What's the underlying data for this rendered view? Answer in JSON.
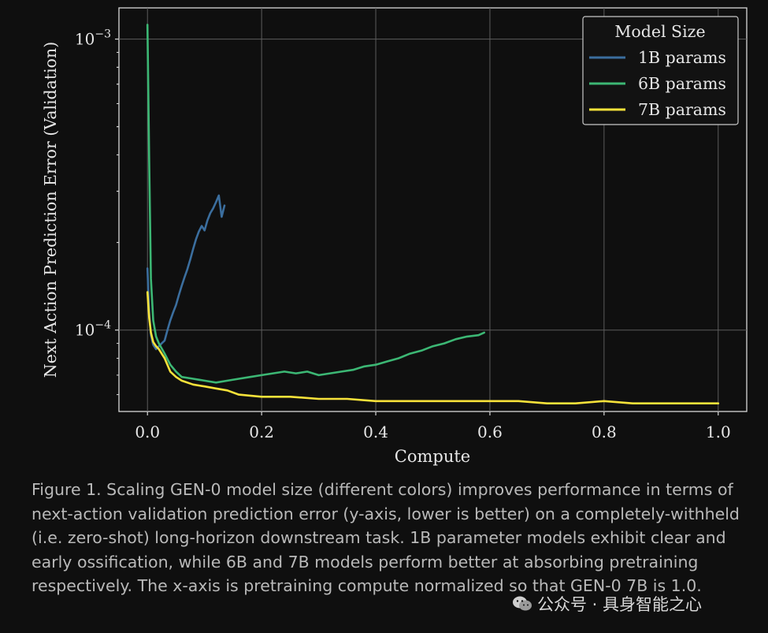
{
  "chart_data": {
    "type": "line",
    "xlabel": "Compute",
    "ylabel": "Next Action Prediction Error (Validation)",
    "xlim": [
      -0.05,
      1.05
    ],
    "ylim": [
      5.25e-05,
      0.00128
    ],
    "yscale": "log",
    "grid": true,
    "xticks": [
      {
        "value": 0.0,
        "label": "0.0"
      },
      {
        "value": 0.2,
        "label": "0.2"
      },
      {
        "value": 0.4,
        "label": "0.4"
      },
      {
        "value": 0.6,
        "label": "0.6"
      },
      {
        "value": 0.8,
        "label": "0.8"
      },
      {
        "value": 1.0,
        "label": "1.0"
      }
    ],
    "yticks": [
      {
        "value": 0.001,
        "base": "10",
        "exp": "−3"
      },
      {
        "value": 0.0001,
        "base": "10",
        "exp": "−4"
      }
    ],
    "legend": {
      "title": "Model Size",
      "placement": "top-right"
    },
    "series": [
      {
        "name": "1B params",
        "color": "#3b6e9e",
        "x": [
          0.0,
          0.003,
          0.006,
          0.01,
          0.015,
          0.02,
          0.025,
          0.03,
          0.035,
          0.04,
          0.045,
          0.05,
          0.055,
          0.06,
          0.065,
          0.07,
          0.075,
          0.08,
          0.085,
          0.09,
          0.095,
          0.1,
          0.105,
          0.11,
          0.115,
          0.12,
          0.125,
          0.13,
          0.135
        ],
        "y": [
          0.000163,
          0.000115,
          9.6e-05,
          8.9e-05,
          8.6e-05,
          8.8e-05,
          9e-05,
          9.2e-05,
          0.0001,
          0.000108,
          0.000115,
          0.000122,
          0.000132,
          0.000142,
          0.000152,
          0.000162,
          0.000175,
          0.00019,
          0.000205,
          0.000218,
          0.000228,
          0.00022,
          0.000238,
          0.000252,
          0.000262,
          0.000275,
          0.00029,
          0.000245,
          0.000268
        ]
      },
      {
        "name": "6B params",
        "color": "#3cb774",
        "x": [
          0.0,
          0.003,
          0.006,
          0.01,
          0.015,
          0.02,
          0.03,
          0.04,
          0.05,
          0.06,
          0.08,
          0.1,
          0.12,
          0.14,
          0.16,
          0.18,
          0.2,
          0.22,
          0.24,
          0.26,
          0.28,
          0.3,
          0.32,
          0.34,
          0.36,
          0.38,
          0.4,
          0.42,
          0.44,
          0.46,
          0.48,
          0.5,
          0.52,
          0.54,
          0.56,
          0.58,
          0.59
        ],
        "y": [
          0.00112,
          0.00038,
          0.00015,
          0.000108,
          9.5e-05,
          9e-05,
          8.3e-05,
          7.6e-05,
          7.2e-05,
          6.9e-05,
          6.8e-05,
          6.7e-05,
          6.6e-05,
          6.7e-05,
          6.8e-05,
          6.9e-05,
          7e-05,
          7.1e-05,
          7.2e-05,
          7.1e-05,
          7.2e-05,
          7e-05,
          7.1e-05,
          7.2e-05,
          7.3e-05,
          7.5e-05,
          7.6e-05,
          7.8e-05,
          8e-05,
          8.3e-05,
          8.5e-05,
          8.8e-05,
          9e-05,
          9.3e-05,
          9.5e-05,
          9.6e-05,
          9.8e-05
        ]
      },
      {
        "name": "7B params",
        "color": "#f7e23a",
        "x": [
          0.0,
          0.003,
          0.006,
          0.01,
          0.015,
          0.02,
          0.03,
          0.04,
          0.05,
          0.06,
          0.08,
          0.1,
          0.12,
          0.14,
          0.16,
          0.2,
          0.25,
          0.3,
          0.35,
          0.4,
          0.45,
          0.5,
          0.55,
          0.6,
          0.65,
          0.7,
          0.75,
          0.8,
          0.85,
          0.9,
          0.95,
          1.0
        ],
        "y": [
          0.000135,
          0.00011,
          9.8e-05,
          9.1e-05,
          8.8e-05,
          8.6e-05,
          8e-05,
          7.2e-05,
          6.9e-05,
          6.7e-05,
          6.5e-05,
          6.4e-05,
          6.3e-05,
          6.2e-05,
          6e-05,
          5.9e-05,
          5.9e-05,
          5.8e-05,
          5.8e-05,
          5.7e-05,
          5.7e-05,
          5.7e-05,
          5.7e-05,
          5.7e-05,
          5.7e-05,
          5.6e-05,
          5.6e-05,
          5.7e-05,
          5.6e-05,
          5.6e-05,
          5.6e-05,
          5.6e-05
        ]
      }
    ]
  },
  "caption": "Figure 1. Scaling GEN-0 model size (different colors) improves performance in terms of next-action validation prediction error (y-axis, lower is better) on a completely-withheld (i.e. zero-shot) long-horizon downstream task. 1B parameter models exhibit clear and early ossification, while 6B and 7B models perform better at absorbing pretraining respectively. The x-axis is pretraining compute normalized so that GEN-0 7B is 1.0.",
  "watermark": {
    "icon": "wechat-icon",
    "text": "公众号 · 具身智能之心"
  }
}
